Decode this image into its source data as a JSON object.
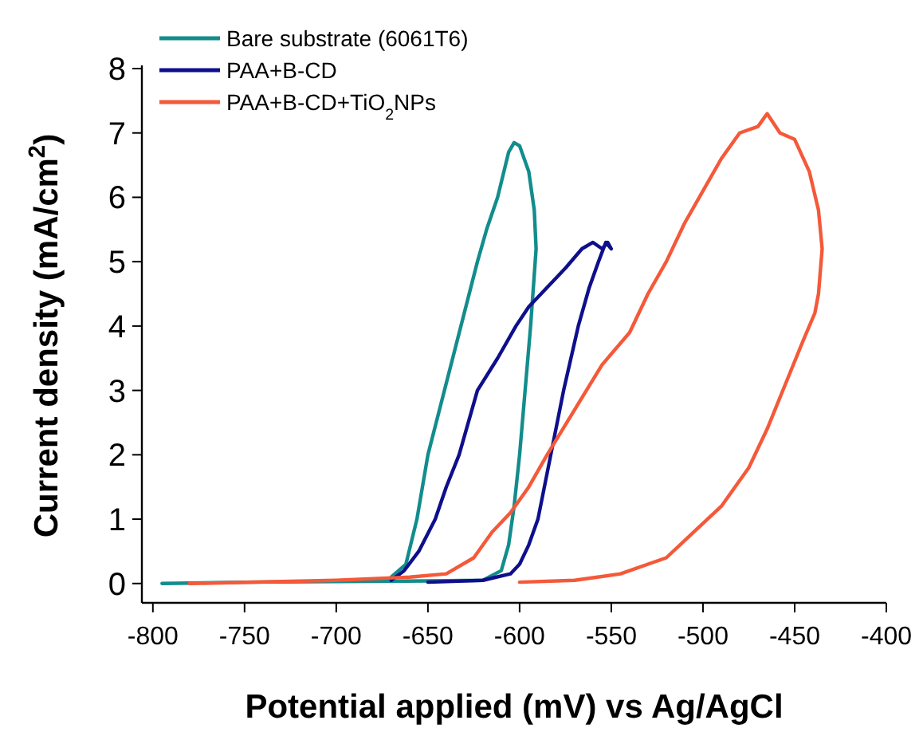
{
  "chart_data": {
    "type": "line",
    "xlabel": "Potential applied (mV) vs Ag/AgCl",
    "ylabel": "Current density (mA/cm$^{2}$)",
    "xlim": [
      -806,
      -400
    ],
    "ylim": [
      -0.3,
      8
    ],
    "xticks": [
      -800,
      -750,
      -700,
      -650,
      -600,
      -550,
      -500,
      -450,
      -400
    ],
    "yticks": [
      0,
      1,
      2,
      3,
      4,
      5,
      6,
      7,
      8
    ],
    "grid": false,
    "legend": "top left",
    "marker": "none",
    "line_style": "solid",
    "series": [
      {
        "name": "Bare substrate (6061T6)",
        "color": "#138c8c",
        "x": [
          -795,
          -750,
          -700,
          -650,
          -620,
          -610,
          -606,
          -603,
          -600,
          -597,
          -594,
          -592,
          -591,
          -592,
          -595,
          -600,
          -603,
          -606,
          -612,
          -618,
          -623,
          -632,
          -641,
          -650,
          -656,
          -662,
          -670
        ],
        "values": [
          0,
          0.02,
          0.03,
          0.04,
          0.05,
          0.2,
          0.6,
          1.2,
          2,
          3,
          4,
          4.8,
          5.2,
          5.8,
          6.4,
          6.8,
          6.85,
          6.7,
          6,
          5.5,
          5,
          4,
          3,
          2,
          1,
          0.3,
          0.1
        ]
      },
      {
        "name": "PAA+B-CD",
        "color": "#0f0f8c",
        "x": [
          -650,
          -620,
          -605,
          -600,
          -595,
          -590,
          -583,
          -576,
          -568,
          -562,
          -557,
          -553,
          -550,
          -552,
          -555,
          -560,
          -566,
          -575,
          -585,
          -595,
          -602,
          -612,
          -623,
          -633,
          -640,
          -646,
          -655,
          -663,
          -670
        ],
        "values": [
          0.02,
          0.05,
          0.15,
          0.3,
          0.6,
          1,
          2,
          3,
          4,
          4.6,
          5,
          5.3,
          5.2,
          5.3,
          5.2,
          5.3,
          5.2,
          4.9,
          4.6,
          4.3,
          4,
          3.5,
          3,
          2,
          1.5,
          1,
          0.5,
          0.2,
          0.05
        ]
      },
      {
        "name": "PAA+B-CD+TiO$_{2}$NPs",
        "color": "#f4593a",
        "x": [
          -780,
          -700,
          -660,
          -640,
          -625,
          -615,
          -605,
          -595,
          -585,
          -570,
          -555,
          -540,
          -530,
          -520,
          -510,
          -500,
          -490,
          -480,
          -470,
          -465,
          -458,
          -450,
          -442,
          -437,
          -435,
          -437,
          -439,
          -445,
          -455,
          -465,
          -475,
          -490,
          -505,
          -520,
          -545,
          -570,
          -600
        ],
        "values": [
          0,
          0.05,
          0.1,
          0.15,
          0.4,
          0.8,
          1.1,
          1.5,
          2,
          2.7,
          3.4,
          3.9,
          4.5,
          5,
          5.6,
          6.1,
          6.6,
          7,
          7.1,
          7.3,
          7,
          6.9,
          6.4,
          5.8,
          5.2,
          4.5,
          4.2,
          3.8,
          3.1,
          2.4,
          1.8,
          1.2,
          0.8,
          0.4,
          0.15,
          0.05,
          0.02
        ]
      }
    ]
  }
}
